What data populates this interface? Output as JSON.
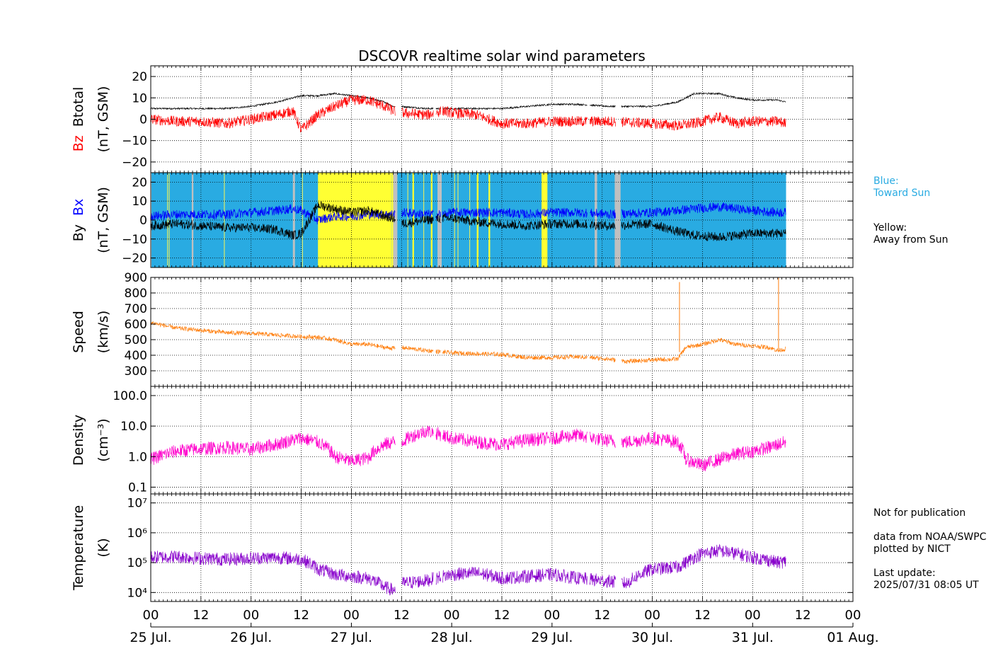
{
  "chart_data": {
    "type": "line",
    "title": "DSCOVR realtime solar wind parameters",
    "x_ticks": [
      "00",
      "12",
      "00",
      "12",
      "00",
      "12",
      "00",
      "12",
      "00",
      "12",
      "00",
      "12",
      "00",
      "12",
      "00"
    ],
    "dates": [
      "25 Jul.",
      "26 Jul.",
      "27 Jul.",
      "28 Jul.",
      "29 Jul.",
      "30 Jul.",
      "31 Jul.",
      "01 Aug."
    ],
    "xlim_hours": [
      0,
      168
    ],
    "data_end_hour": 152,
    "colors": {
      "bt": "#000000",
      "bz": "#ff0000",
      "bx": "#0000ff",
      "by": "#000000",
      "speed": "#ff7f0e",
      "density": "#ff00cc",
      "temperature": "#8800cc",
      "toward": "#29abe2",
      "away": "#ffff33",
      "gap": "#c0c0c0"
    },
    "panels": [
      {
        "id": "mag",
        "ylabel_series": [
          "Btotal",
          "Bz"
        ],
        "ylabel_units": "(nT, GSM)",
        "ylim": [
          -25,
          25
        ],
        "yticks": [
          "20",
          "10",
          "0",
          "−10",
          "−20"
        ],
        "ytick_values": [
          20,
          10,
          0,
          -10,
          -20
        ],
        "series": [
          {
            "name": "Btotal",
            "x": [
              0,
              6,
              12,
              18,
              24,
              30,
              34,
              36,
              40,
              44,
              48,
              52,
              56,
              58,
              60,
              66,
              70,
              72,
              78,
              84,
              90,
              96,
              102,
              110,
              120,
              126,
              130,
              136,
              140,
              144,
              150,
              152
            ],
            "values": [
              5,
              5,
              5,
              5,
              6,
              8,
              10,
              11,
              11,
              12,
              11,
              10,
              8,
              6,
              6,
              5,
              5,
              5,
              5,
              5,
              6,
              7,
              7,
              6,
              6,
              8,
              12,
              12,
              10,
              9,
              9,
              8
            ]
          },
          {
            "name": "Bz",
            "x": [
              0,
              6,
              12,
              18,
              24,
              30,
              34,
              36,
              40,
              44,
              48,
              52,
              56,
              58,
              60,
              66,
              70,
              72,
              78,
              84,
              90,
              96,
              102,
              110,
              120,
              126,
              130,
              136,
              140,
              144,
              150,
              152
            ],
            "values": [
              0,
              -1,
              -1,
              -2,
              0,
              2,
              4,
              -5,
              2,
              6,
              9,
              9,
              6,
              4,
              3,
              2,
              4,
              3,
              2,
              -2,
              -2,
              -1,
              -1,
              -1,
              -2,
              -3,
              -2,
              1,
              -2,
              -1,
              -1,
              -2
            ]
          }
        ]
      },
      {
        "id": "bxby",
        "ylabel_series": [
          "By",
          "Bx"
        ],
        "ylabel_units": "(nT, GSM)",
        "ylim": [
          -25,
          25
        ],
        "yticks": [
          "20",
          "10",
          "0",
          "−10",
          "−20"
        ],
        "ytick_values": [
          20,
          10,
          0,
          -10,
          -20
        ],
        "series": [
          {
            "name": "Bx",
            "x": [
              0,
              6,
              12,
              18,
              24,
              30,
              34,
              36,
              40,
              44,
              48,
              52,
              56,
              58,
              60,
              66,
              70,
              72,
              78,
              84,
              90,
              96,
              102,
              110,
              120,
              126,
              130,
              136,
              140,
              144,
              150,
              152
            ],
            "values": [
              2,
              3,
              3,
              3,
              4,
              5,
              6,
              5,
              0,
              2,
              2,
              3,
              3,
              3,
              4,
              3,
              3,
              4,
              4,
              4,
              3,
              4,
              4,
              3,
              4,
              5,
              6,
              7,
              6,
              5,
              4,
              4
            ]
          },
          {
            "name": "By",
            "x": [
              0,
              6,
              12,
              18,
              24,
              30,
              34,
              36,
              40,
              44,
              48,
              52,
              56,
              58,
              60,
              66,
              70,
              72,
              78,
              84,
              90,
              96,
              102,
              110,
              120,
              126,
              130,
              136,
              140,
              144,
              150,
              152
            ],
            "values": [
              -3,
              -2,
              -3,
              -4,
              -4,
              -5,
              -8,
              -7,
              8,
              6,
              4,
              5,
              2,
              1,
              -2,
              0,
              1,
              1,
              -1,
              -2,
              -3,
              -2,
              -2,
              -3,
              -2,
              -6,
              -8,
              -9,
              -8,
              -7,
              -7,
              -7
            ]
          }
        ],
        "sector_legend": {
          "toward": [
            "Blue:",
            "Toward Sun"
          ],
          "away": [
            "Yellow:",
            "Away from Sun"
          ]
        },
        "sectors_away_hours": [
          [
            40,
            58
          ],
          [
            62.6,
            63
          ],
          [
            67,
            67.4
          ],
          [
            78,
            78.4
          ],
          [
            80.8,
            81.2
          ],
          [
            93.5,
            94.9
          ]
        ],
        "sectors_gap_hours": [
          [
            9.8,
            10.2
          ],
          [
            34,
            34.5
          ],
          [
            58,
            59
          ],
          [
            68.6,
            69.6
          ],
          [
            106.2,
            106.8
          ],
          [
            111,
            112.4
          ]
        ]
      },
      {
        "id": "speed",
        "ylabel_series": [
          "Speed"
        ],
        "ylabel_units": "(km/s)",
        "ylim": [
          200,
          900
        ],
        "yticks": [
          "900",
          "800",
          "700",
          "600",
          "500",
          "400",
          "300"
        ],
        "ytick_values": [
          900,
          800,
          700,
          600,
          500,
          400,
          300
        ],
        "series": [
          {
            "name": "Speed",
            "x": [
              0,
              6,
              12,
              18,
              24,
              30,
              36,
              40,
              44,
              48,
              52,
              56,
              58,
              60,
              66,
              72,
              78,
              84,
              90,
              96,
              102,
              108,
              114,
              120,
              126,
              128,
              132,
              136,
              140,
              144,
              148,
              150,
              152
            ],
            "values": [
              610,
              575,
              560,
              545,
              540,
              530,
              520,
              515,
              500,
              470,
              470,
              450,
              445,
              450,
              430,
              415,
              410,
              405,
              385,
              385,
              390,
              380,
              360,
              370,
              375,
              450,
              470,
              500,
              470,
              460,
              450,
              430,
              440
            ]
          }
        ]
      },
      {
        "id": "density",
        "ylabel_series": [
          "Density"
        ],
        "ylabel_units": "(cm⁻³)",
        "scale": "log",
        "ylim": [
          0.06,
          200
        ],
        "yticks": [
          "100.0",
          "10.0",
          "1.0",
          "0.1"
        ],
        "ytick_values": [
          100,
          10,
          1,
          0.1
        ],
        "series": [
          {
            "name": "Density",
            "x": [
              0,
              6,
              12,
              18,
              24,
              30,
              36,
              40,
              44,
              48,
              52,
              56,
              58,
              60,
              66,
              72,
              78,
              84,
              90,
              96,
              102,
              108,
              114,
              120,
              126,
              128,
              132,
              136,
              140,
              144,
              148,
              150,
              152
            ],
            "values": [
              0.8,
              1.5,
              1.8,
              2,
              1.7,
              2.5,
              4,
              3,
              1,
              0.7,
              0.9,
              2.5,
              3,
              3,
              7,
              4,
              3,
              2.5,
              3.5,
              4,
              5,
              3.5,
              3,
              4,
              3,
              0.8,
              0.5,
              0.8,
              1.2,
              1.5,
              2,
              2.5,
              3
            ]
          }
        ]
      },
      {
        "id": "temperature",
        "ylabel_series": [
          "Temperature"
        ],
        "ylabel_units": "(K)",
        "scale": "log",
        "ylim": [
          5000,
          20000000
        ],
        "yticks": [
          "10⁷",
          "10⁶",
          "10⁵",
          "10⁴"
        ],
        "ytick_values": [
          10000000,
          1000000,
          100000,
          10000
        ],
        "series": [
          {
            "name": "Temperature",
            "x": [
              0,
              6,
              12,
              18,
              24,
              30,
              36,
              40,
              44,
              48,
              52,
              56,
              58,
              60,
              66,
              72,
              78,
              84,
              90,
              96,
              102,
              108,
              114,
              120,
              126,
              128,
              132,
              136,
              140,
              144,
              148,
              150,
              152
            ],
            "values": [
              150000,
              160000,
              140000,
              130000,
              140000,
              150000,
              130000,
              60000,
              40000,
              35000,
              30000,
              15000,
              12000,
              20000,
              25000,
              40000,
              45000,
              30000,
              35000,
              40000,
              30000,
              25000,
              20000,
              60000,
              70000,
              100000,
              200000,
              250000,
              200000,
              150000,
              120000,
              100000,
              110000
            ]
          }
        ]
      }
    ]
  },
  "side_notes": {
    "toward_title": "Blue:",
    "toward_text": "Toward Sun",
    "away_title": "Yellow:",
    "away_text": "Away from Sun",
    "not_for_publication": "Not for publication",
    "data_source": "data from NOAA/SWPC",
    "plotted_by": "plotted by NICT",
    "last_update_label": "Last update:",
    "last_update_value": "2025/07/31 08:05 UT"
  }
}
